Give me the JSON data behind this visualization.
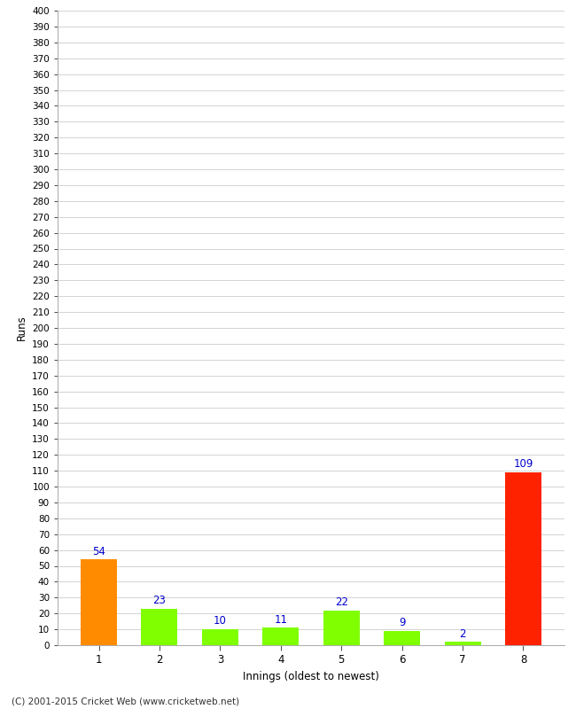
{
  "categories": [
    1,
    2,
    3,
    4,
    5,
    6,
    7,
    8
  ],
  "values": [
    54,
    23,
    10,
    11,
    22,
    9,
    2,
    109
  ],
  "bar_colors": [
    "#ff8c00",
    "#7fff00",
    "#7fff00",
    "#7fff00",
    "#7fff00",
    "#7fff00",
    "#7fff00",
    "#ff2200"
  ],
  "xlabel": "Innings (oldest to newest)",
  "ylabel": "Runs",
  "ylim": [
    0,
    400
  ],
  "ytick_step": 10,
  "value_label_color": "#0000cc",
  "background_color": "#ffffff",
  "grid_color": "#cccccc",
  "footer": "(C) 2001-2015 Cricket Web (www.cricketweb.net)"
}
